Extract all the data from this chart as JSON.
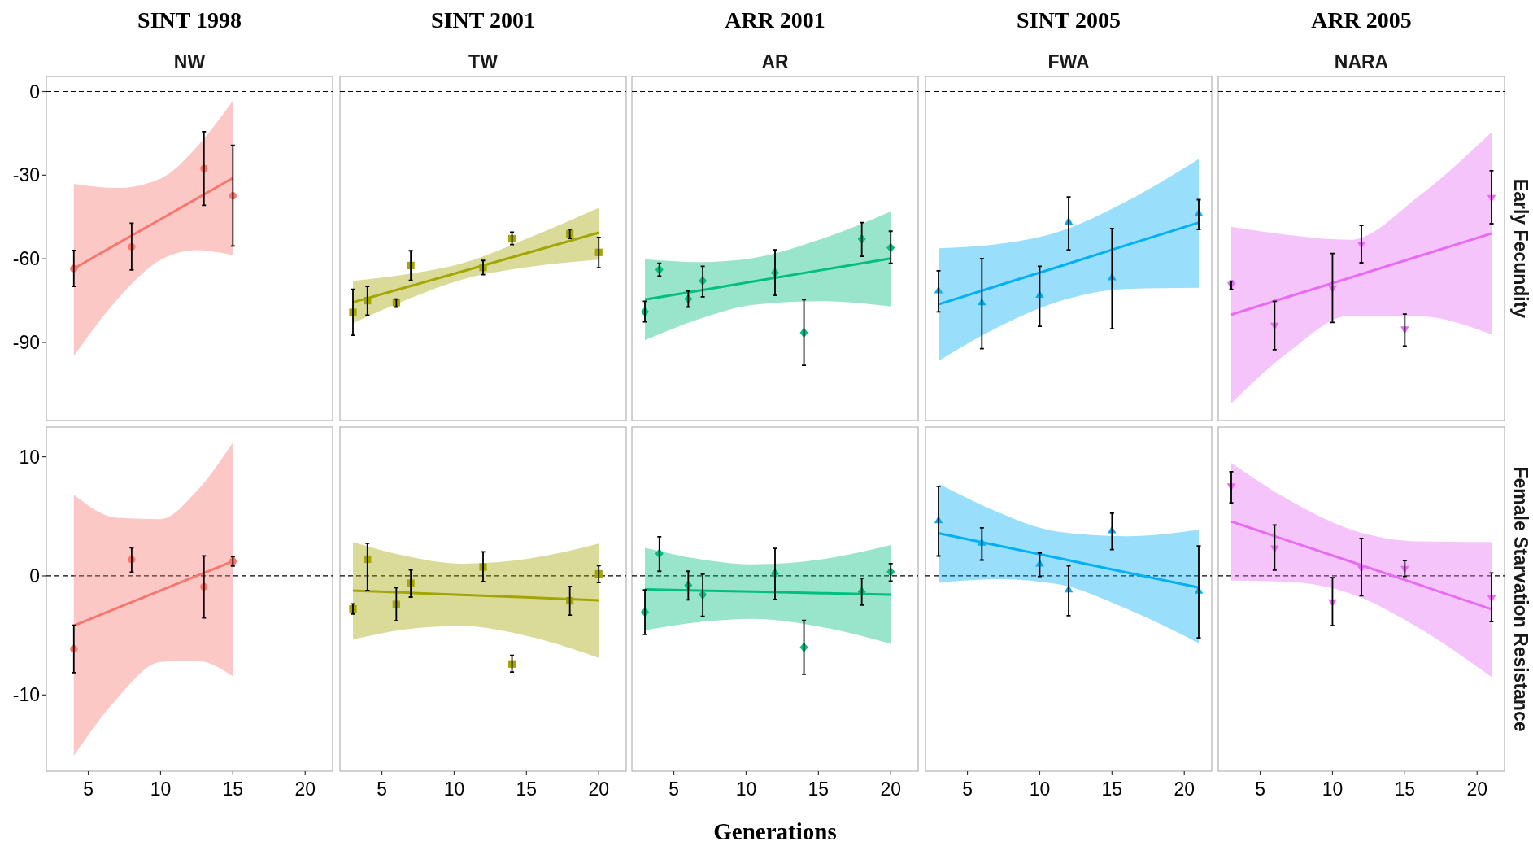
{
  "chart_data": [
    {
      "type": "scatter",
      "title": "SINT 1998",
      "subtitle": "NW",
      "xlim": [
        2.1,
        21.9
      ],
      "ylim": [
        -118,
        5.4
      ],
      "yticks": [
        0,
        -30,
        -60,
        -90
      ],
      "tick_labels": "y",
      "ref_lines": [
        {
          "axis": "y",
          "value": 0,
          "line_style": "dashed"
        }
      ],
      "series": [
        {
          "marker": "circle",
          "color": "#f8766d",
          "x": [
            4,
            8,
            13,
            15
          ],
          "values": [
            -63.5,
            -55.7,
            -27.6,
            -37.4
          ],
          "errors": [
            [
              -69.9,
              -57.0
            ],
            [
              -64.0,
              -47.2
            ],
            [
              -40.8,
              -14.4
            ],
            [
              -55.4,
              -19.3
            ]
          ]
        },
        {
          "type": "line",
          "color": "#f8766d",
          "x": [
            4,
            7,
            10,
            12.5,
            15
          ],
          "values": [
            -63.5,
            -54.6,
            -45.8,
            -38.4,
            -31.0
          ],
          "upper": [
            -33.1,
            -34.6,
            -31.2,
            -19.9,
            -3.3
          ],
          "lower": [
            -94.9,
            -74.6,
            -60.4,
            -56.9,
            -58.6
          ]
        }
      ]
    },
    {
      "type": "scatter",
      "title": "SINT 2001",
      "subtitle": "TW",
      "xlim": [
        2.1,
        21.9
      ],
      "ylim": [
        -118,
        5.4
      ],
      "tick_labels": false,
      "ref_lines": [
        {
          "axis": "y",
          "value": 0,
          "line_style": "dashed"
        }
      ],
      "series": [
        {
          "marker": "square",
          "color": "#a3a500",
          "x": [
            3,
            4,
            6,
            7,
            12,
            14,
            18,
            20
          ],
          "values": [
            -79.2,
            -75.0,
            -75.7,
            -62.4,
            -63.1,
            -52.8,
            -51.0,
            -57.7
          ],
          "errors": [
            [
              -87.4,
              -70.9
            ],
            [
              -80.2,
              -69.9
            ],
            [
              -77.3,
              -74.4
            ],
            [
              -67.7,
              -57.1
            ],
            [
              -65.7,
              -60.6
            ],
            [
              -54.9,
              -50.4
            ],
            [
              -52.7,
              -49.4
            ],
            [
              -63.2,
              -52.3
            ]
          ]
        },
        {
          "type": "line",
          "color": "#a3a500",
          "x": [
            3,
            6.75,
            10.5,
            15.25,
            20
          ],
          "values": [
            -75.6,
            -70.1,
            -64.6,
            -57.6,
            -50.6
          ],
          "upper": [
            -67.9,
            -65.5,
            -61.7,
            -52.3,
            -41.7
          ],
          "lower": [
            -83.1,
            -74.6,
            -67.5,
            -62.9,
            -60.3
          ]
        }
      ]
    },
    {
      "type": "scatter",
      "title": "ARR 2001",
      "subtitle": "AR",
      "xlim": [
        2.1,
        21.9
      ],
      "ylim": [
        -118,
        5.4
      ],
      "tick_labels": false,
      "ref_lines": [
        {
          "axis": "y",
          "value": 0,
          "line_style": "dashed"
        }
      ],
      "series": [
        {
          "marker": "diamond",
          "color": "#00bf7d",
          "x": [
            3,
            4,
            6,
            7,
            12,
            14,
            18,
            20
          ],
          "values": [
            -79.0,
            -63.9,
            -74.4,
            -67.9,
            -65.0,
            -86.5,
            -52.9,
            -56.0
          ],
          "errors": [
            [
              -82.6,
              -75.2
            ],
            [
              -66.2,
              -61.6
            ],
            [
              -77.3,
              -71.5
            ],
            [
              -73.6,
              -62.7
            ],
            [
              -73.1,
              -56.8
            ],
            [
              -98.2,
              -74.6
            ],
            [
              -59.1,
              -47.0
            ],
            [
              -61.6,
              -50.1
            ]
          ]
        },
        {
          "type": "line",
          "color": "#00bf7d",
          "x": [
            3,
            6.75,
            10.5,
            15.25,
            20
          ],
          "values": [
            -74.6,
            -71.4,
            -68.1,
            -64.0,
            -59.9
          ],
          "upper": [
            -60.2,
            -61.2,
            -59.7,
            -52.8,
            -43.0
          ],
          "lower": [
            -89.2,
            -81.6,
            -76.5,
            -75.2,
            -77.1
          ]
        }
      ]
    },
    {
      "type": "scatter",
      "title": "SINT 2005",
      "subtitle": "FWA",
      "xlim": [
        2.1,
        21.9
      ],
      "ylim": [
        -118,
        5.4
      ],
      "tick_labels": false,
      "ref_lines": [
        {
          "axis": "y",
          "value": 0,
          "line_style": "dashed"
        }
      ],
      "series": [
        {
          "marker": "triangle",
          "color": "#00b0f6",
          "x": [
            3,
            6,
            10,
            12,
            15,
            21
          ],
          "values": [
            -71.3,
            -75.6,
            -72.9,
            -46.6,
            -66.6,
            -43.6
          ],
          "errors": [
            [
              -79.0,
              -64.3
            ],
            [
              -92.2,
              -59.9
            ],
            [
              -84.2,
              -62.7
            ],
            [
              -56.8,
              -37.8
            ],
            [
              -85.1,
              -49.1
            ],
            [
              -49.5,
              -38.8
            ]
          ]
        },
        {
          "type": "line",
          "color": "#00b0f6",
          "x": [
            3,
            7,
            11.2,
            16,
            21
          ],
          "values": [
            -76.3,
            -69.8,
            -63.0,
            -55.1,
            -47.0
          ],
          "upper": [
            -56.2,
            -54.8,
            -50.5,
            -39.4,
            -24.2
          ],
          "lower": [
            -96.6,
            -84.8,
            -75.5,
            -70.8,
            -70.4
          ]
        }
      ]
    },
    {
      "type": "scatter",
      "title": "ARR 2005",
      "subtitle": "NARA",
      "ylabel": "Early Fecundity",
      "xlim": [
        2.1,
        21.9
      ],
      "ylim": [
        -118,
        5.4
      ],
      "tick_labels": false,
      "ref_lines": [
        {
          "axis": "y",
          "value": 0,
          "line_style": "dashed"
        }
      ],
      "series": [
        {
          "marker": "triangle-down",
          "color": "#e76bf3",
          "x": [
            3,
            6,
            10,
            12,
            15,
            21
          ],
          "values": [
            -69.4,
            -84.0,
            -70.6,
            -54.9,
            -85.3,
            -38.2
          ],
          "errors": [
            [
              -70.9,
              -68.0
            ],
            [
              -92.6,
              -75.2
            ],
            [
              -82.8,
              -58.1
            ],
            [
              -61.4,
              -48.0
            ],
            [
              -91.3,
              -79.8
            ],
            [
              -47.4,
              -28.4
            ]
          ]
        },
        {
          "type": "line",
          "color": "#e76bf3",
          "x": [
            3,
            7,
            11.2,
            16,
            21
          ],
          "values": [
            -80.0,
            -73.5,
            -66.8,
            -59.0,
            -50.9
          ],
          "upper": [
            -48.5,
            -51.5,
            -53.2,
            -37.4,
            -14.6
          ],
          "lower": [
            -111.8,
            -93.3,
            -80.4,
            -80.6,
            -87.1
          ]
        }
      ]
    },
    {
      "type": "scatter",
      "xlim": [
        2.1,
        21.9
      ],
      "ylim": [
        -16.4,
        12.5
      ],
      "xticks": [
        5,
        10,
        15,
        20
      ],
      "yticks": [
        -10,
        0,
        10
      ],
      "ref_lines": [
        {
          "axis": "y",
          "value": 0,
          "line_style": "dashed"
        }
      ],
      "series": [
        {
          "marker": "circle",
          "color": "#f8766d",
          "x": [
            4,
            8,
            13,
            15
          ],
          "values": [
            -6.13,
            1.37,
            -0.92,
            1.23
          ],
          "errors": [
            [
              -8.12,
              -4.14
            ],
            [
              0.31,
              2.36
            ],
            [
              -3.53,
              1.68
            ],
            [
              0.82,
              1.61
            ]
          ]
        },
        {
          "type": "line",
          "color": "#f8766d",
          "x": [
            4,
            7,
            10,
            12.5,
            15
          ],
          "values": [
            -4.18,
            -2.7,
            -1.23,
            0.0,
            1.23
          ],
          "upper": [
            6.82,
            4.88,
            4.77,
            7.13,
            11.2
          ],
          "lower": [
            -15.1,
            -10.28,
            -7.23,
            -7.13,
            -8.42
          ]
        }
      ]
    },
    {
      "type": "scatter",
      "xlim": [
        2.1,
        21.9
      ],
      "ylim": [
        -16.4,
        12.5
      ],
      "xticks": [
        5,
        10,
        15,
        20
      ],
      "tick_labels": "x",
      "ref_lines": [
        {
          "axis": "y",
          "value": 0,
          "line_style": "dashed"
        }
      ],
      "series": [
        {
          "marker": "square",
          "color": "#a3a500",
          "x": [
            3,
            4,
            6,
            7,
            12,
            14,
            18,
            20
          ],
          "values": [
            -2.77,
            1.4,
            -2.4,
            -0.62,
            0.75,
            -7.4,
            -2.09,
            0.17
          ],
          "errors": [
            [
              -3.2,
              -2.35
            ],
            [
              -1.23,
              2.74
            ],
            [
              -3.77,
              -0.99
            ],
            [
              -1.78,
              0.51
            ],
            [
              -0.48,
              2.02
            ],
            [
              -8.08,
              -6.68
            ],
            [
              -3.29,
              -0.89
            ],
            [
              -0.55,
              0.86
            ]
          ]
        },
        {
          "type": "line",
          "color": "#a3a500",
          "x": [
            3,
            6.75,
            10.5,
            15.25,
            20
          ],
          "values": [
            -1.23,
            -1.41,
            -1.59,
            -1.82,
            -2.05
          ],
          "upper": [
            2.84,
            1.65,
            1.03,
            1.47,
            2.71
          ],
          "lower": [
            -5.34,
            -4.47,
            -4.21,
            -5.11,
            -6.88
          ]
        }
      ]
    },
    {
      "type": "scatter",
      "xlabel": "Generations",
      "xlim": [
        2.1,
        21.9
      ],
      "ylim": [
        -16.4,
        12.5
      ],
      "xticks": [
        5,
        10,
        15,
        20
      ],
      "tick_labels": "x",
      "ref_lines": [
        {
          "axis": "y",
          "value": 0,
          "line_style": "dashed"
        }
      ],
      "series": [
        {
          "marker": "diamond",
          "color": "#00bf7d",
          "x": [
            3,
            4,
            6,
            7,
            12,
            14,
            18,
            20
          ],
          "values": [
            -3.05,
            1.87,
            -0.79,
            -1.57,
            0.2,
            -6.0,
            -1.33,
            0.34
          ],
          "errors": [
            [
              -4.91,
              -1.18
            ],
            [
              0.39,
              3.29
            ],
            [
              -2.01,
              0.39
            ],
            [
              -3.39,
              0.15
            ],
            [
              -1.97,
              2.31
            ],
            [
              -8.26,
              -3.73
            ],
            [
              -2.46,
              -0.2
            ],
            [
              -0.44,
              1.03
            ]
          ]
        },
        {
          "type": "line",
          "color": "#00bf7d",
          "x": [
            3,
            6.75,
            10.5,
            15.25,
            20
          ],
          "values": [
            -1.13,
            -1.23,
            -1.32,
            -1.45,
            -1.57
          ],
          "upper": [
            2.36,
            1.42,
            0.97,
            1.4,
            2.6
          ],
          "lower": [
            -4.57,
            -3.88,
            -3.61,
            -4.3,
            -5.7
          ]
        }
      ]
    },
    {
      "type": "scatter",
      "xlim": [
        2.1,
        21.9
      ],
      "ylim": [
        -16.4,
        12.5
      ],
      "xticks": [
        5,
        10,
        15,
        20
      ],
      "tick_labels": "x",
      "ref_lines": [
        {
          "axis": "y",
          "value": 0,
          "line_style": "dashed"
        }
      ],
      "series": [
        {
          "marker": "triangle",
          "color": "#00b0f6",
          "x": [
            3,
            6,
            10,
            12,
            15,
            21
          ],
          "values": [
            4.67,
            2.8,
            1.03,
            -1.13,
            3.83,
            -1.23
          ],
          "errors": [
            [
              1.67,
              7.52
            ],
            [
              1.33,
              4.03
            ],
            [
              -0.05,
              1.92
            ],
            [
              -3.34,
              0.84
            ],
            [
              2.21,
              5.26
            ],
            [
              -5.21,
              2.51
            ]
          ]
        },
        {
          "type": "line",
          "color": "#00b0f6",
          "x": [
            3,
            7,
            11.2,
            16,
            21
          ],
          "values": [
            3.59,
            2.57,
            1.52,
            0.29,
            -0.98
          ],
          "upper": [
            7.76,
            5.42,
            3.72,
            3.33,
            3.88
          ],
          "lower": [
            -0.59,
            -0.28,
            -0.68,
            -2.75,
            -5.65
          ]
        }
      ]
    },
    {
      "type": "scatter",
      "ylabel": "Female Starvation Resistance",
      "xlim": [
        2.1,
        21.9
      ],
      "ylim": [
        -16.4,
        12.5
      ],
      "xticks": [
        5,
        10,
        15,
        20
      ],
      "tick_labels": "x",
      "ref_lines": [
        {
          "axis": "y",
          "value": 0,
          "line_style": "dashed"
        }
      ],
      "series": [
        {
          "marker": "triangle-down",
          "color": "#e76bf3",
          "x": [
            3,
            6,
            10,
            12,
            15,
            21
          ],
          "values": [
            7.52,
            2.31,
            -2.21,
            0.64,
            0.59,
            -1.87
          ],
          "errors": [
            [
              6.14,
              8.75
            ],
            [
              0.49,
              4.28
            ],
            [
              -4.18,
              -0.15
            ],
            [
              -1.67,
              3.14
            ],
            [
              -0.05,
              1.28
            ],
            [
              -3.83,
              0.25
            ]
          ]
        },
        {
          "type": "line",
          "color": "#e76bf3",
          "x": [
            3,
            7,
            11.2,
            16,
            21
          ],
          "values": [
            4.57,
            2.93,
            1.23,
            -0.75,
            -2.8
          ],
          "upper": [
            9.48,
            6.36,
            3.93,
            2.9,
            2.85
          ],
          "lower": [
            -0.39,
            -0.5,
            -1.47,
            -4.4,
            -8.5
          ]
        }
      ]
    }
  ]
}
